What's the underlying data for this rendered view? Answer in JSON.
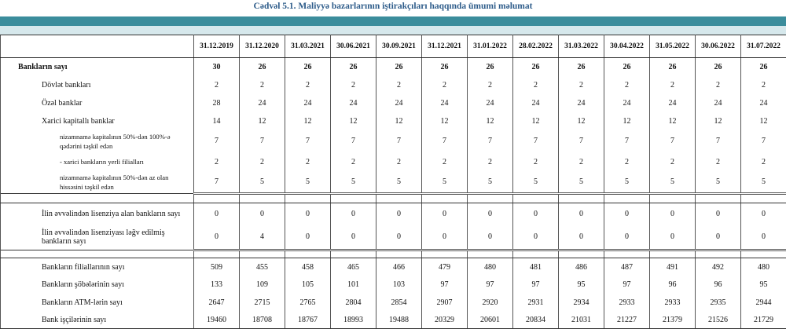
{
  "title": "Cədvəl 5.1. Maliyyə bazarlarının iştirakçıları haqqında ümumi məlumat",
  "columns": [
    "31.12.2019",
    "31.12.2020",
    "31.03.2021",
    "30.06.2021",
    "30.09.2021",
    "31.12.2021",
    "31.01.2022",
    "28.02.2022",
    "31.03.2022",
    "30.04.2022",
    "31.05.2022",
    "30.06.2022",
    "31.07.2022"
  ],
  "sections": [
    {
      "rows": [
        {
          "label": "Bankların sayı",
          "values": [
            30,
            26,
            26,
            26,
            26,
            26,
            26,
            26,
            26,
            26,
            26,
            26,
            26
          ]
        },
        {
          "label": "Dövlət bankları",
          "values": [
            2,
            2,
            2,
            2,
            2,
            2,
            2,
            2,
            2,
            2,
            2,
            2,
            2
          ]
        },
        {
          "label": "Özəl banklar",
          "values": [
            28,
            24,
            24,
            24,
            24,
            24,
            24,
            24,
            24,
            24,
            24,
            24,
            24
          ]
        },
        {
          "label": "Xarici kapitallı banklar",
          "values": [
            14,
            12,
            12,
            12,
            12,
            12,
            12,
            12,
            12,
            12,
            12,
            12,
            12
          ]
        },
        {
          "label": "nizamnamə kapitalının 50%-dən 100%-ə qədərini təşkil edən",
          "values": [
            7,
            7,
            7,
            7,
            7,
            7,
            7,
            7,
            7,
            7,
            7,
            7,
            7
          ]
        },
        {
          "label": "-  xarici bankların yerli filialları",
          "values": [
            2,
            2,
            2,
            2,
            2,
            2,
            2,
            2,
            2,
            2,
            2,
            2,
            2
          ]
        },
        {
          "label": "nizamnamə kapitalının 50%-dən az olan hissəsini  təşkil edən",
          "values": [
            7,
            5,
            5,
            5,
            5,
            5,
            5,
            5,
            5,
            5,
            5,
            5,
            5
          ]
        }
      ]
    },
    {
      "rows": [
        {
          "label": "İlin əvvəlindən lisenziya alan bankların sayı",
          "values": [
            0,
            0,
            0,
            0,
            0,
            0,
            0,
            0,
            0,
            0,
            0,
            0,
            0
          ]
        },
        {
          "label": "İlin əvvəlindən lisenziyası ləğv edilmiş bankların sayı",
          "values": [
            0,
            4,
            0,
            0,
            0,
            0,
            0,
            0,
            0,
            0,
            0,
            0,
            0
          ]
        }
      ]
    },
    {
      "rows": [
        {
          "label": "Bankların filiallarının sayı",
          "values": [
            509,
            455,
            458,
            465,
            466,
            479,
            480,
            481,
            486,
            487,
            491,
            492,
            480
          ]
        },
        {
          "label": "Bankların şöbələrinin sayı",
          "values": [
            133,
            109,
            105,
            101,
            103,
            97,
            97,
            97,
            95,
            97,
            96,
            96,
            95
          ]
        },
        {
          "label": "Bankların ATM-lərin sayı",
          "values": [
            2647,
            2715,
            2765,
            2804,
            2854,
            2907,
            2920,
            2931,
            2934,
            2933,
            2933,
            2935,
            2944
          ]
        },
        {
          "label": "Bank işçilərinin sayı",
          "values": [
            19460,
            18708,
            18767,
            18993,
            19488,
            20329,
            20601,
            20834,
            21031,
            21227,
            21379,
            21526,
            21729
          ]
        }
      ]
    }
  ]
}
